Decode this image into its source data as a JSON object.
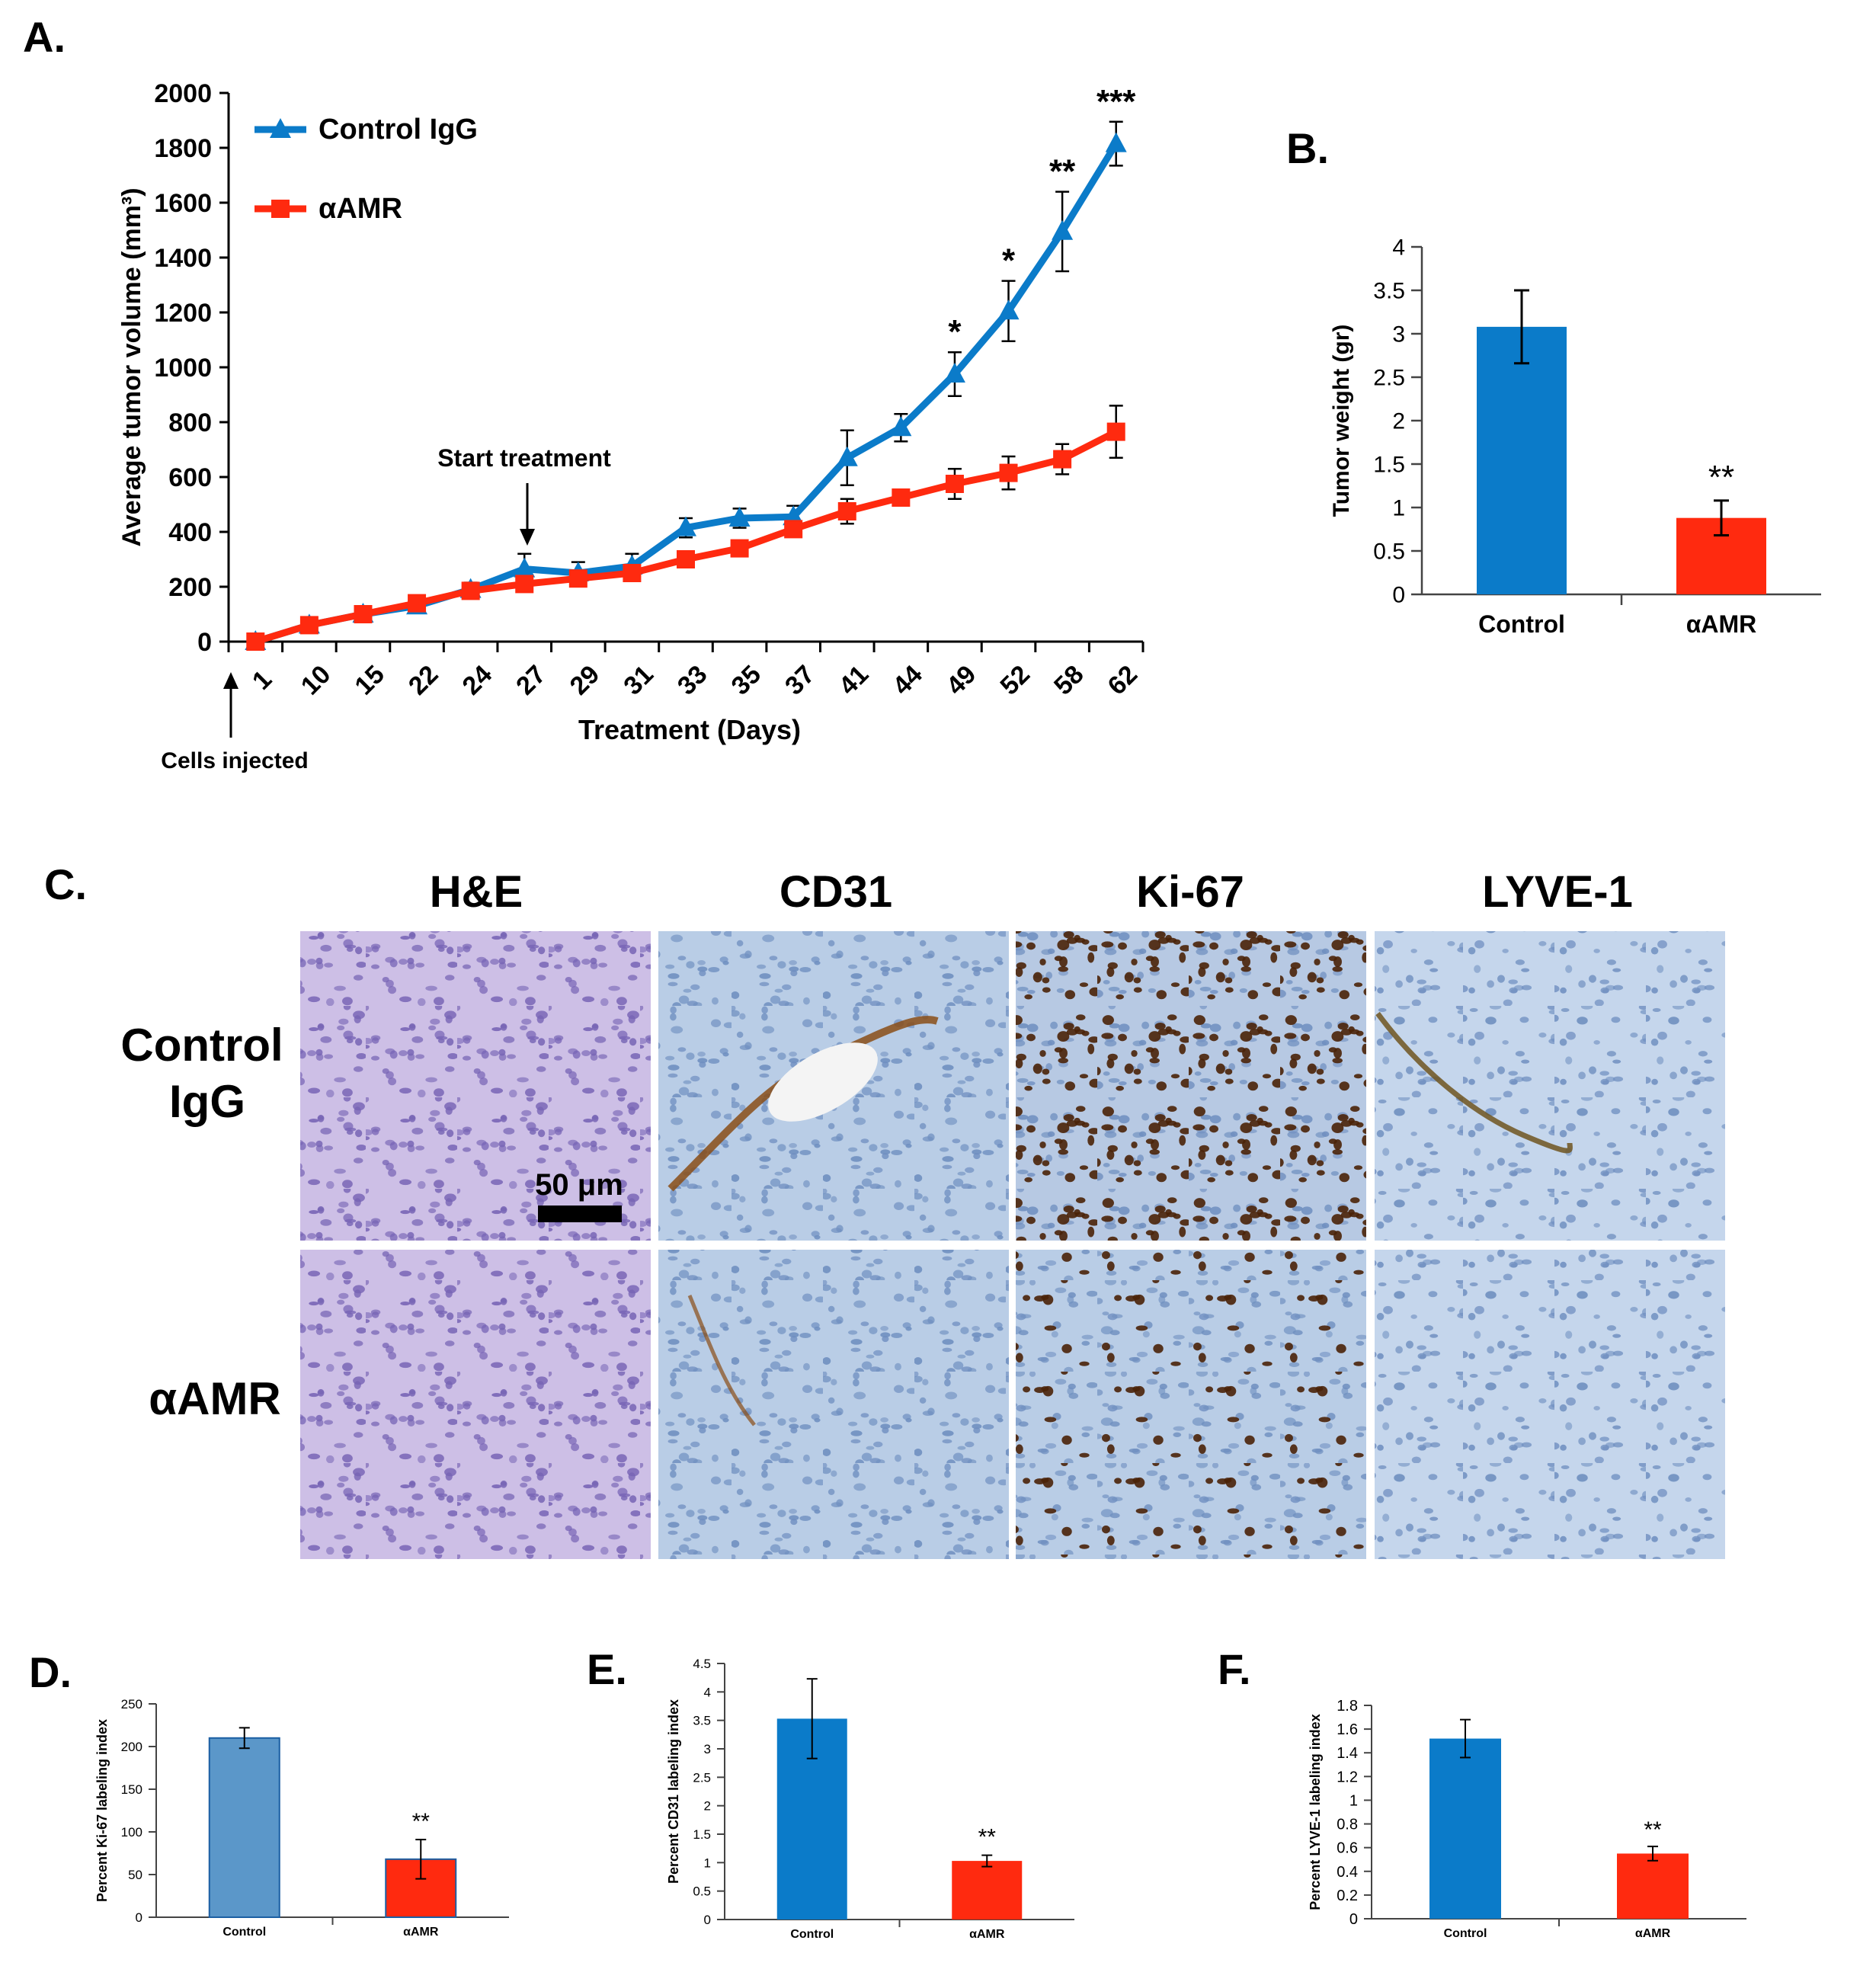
{
  "figure": {
    "colors": {
      "control": "#0b7bc9",
      "amr": "#ff2a0f",
      "control_light": "#5b97c9",
      "axis": "#000000"
    }
  },
  "chart_data": [
    {
      "id": "A",
      "panel_label": "A.",
      "type": "line",
      "categories": [
        "1",
        "10",
        "15",
        "22",
        "24",
        "27",
        "29",
        "31",
        "33",
        "35",
        "37",
        "41",
        "44",
        "49",
        "52",
        "58",
        "62"
      ],
      "series": [
        {
          "name": "Control IgG",
          "values": [
            0,
            60,
            100,
            130,
            190,
            265,
            250,
            275,
            415,
            450,
            455,
            670,
            780,
            975,
            1205,
            1495,
            1815
          ],
          "errors": [
            0,
            20,
            25,
            25,
            25,
            55,
            40,
            45,
            35,
            35,
            40,
            100,
            50,
            80,
            110,
            145,
            80
          ]
        },
        {
          "name": "αAMR",
          "values": [
            0,
            60,
            100,
            140,
            185,
            210,
            230,
            250,
            300,
            340,
            410,
            475,
            525,
            575,
            615,
            665,
            765
          ],
          "errors": [
            0,
            15,
            20,
            20,
            20,
            20,
            25,
            25,
            25,
            25,
            25,
            45,
            30,
            55,
            60,
            55,
            95
          ]
        }
      ],
      "significance": [
        {
          "x": "49",
          "label": "*"
        },
        {
          "x": "52",
          "label": "*"
        },
        {
          "x": "58",
          "label": "**"
        },
        {
          "x": "62",
          "label": "***"
        }
      ],
      "ylabel": "Average tumor volume (mm³)",
      "xlabel": "Treatment (Days)",
      "ylim": [
        0,
        2000
      ],
      "yticks": [
        "0",
        "200",
        "400",
        "600",
        "800",
        "1000",
        "1200",
        "1400",
        "1600",
        "1800",
        "2000"
      ],
      "annotations": {
        "start": "Start treatment",
        "cells": "Cells injected"
      },
      "legend": "top-left"
    },
    {
      "id": "B",
      "panel_label": "B.",
      "type": "bar",
      "categories": [
        "Control",
        "αAMR"
      ],
      "values": [
        3.08,
        0.88
      ],
      "errors": [
        0.42,
        0.2
      ],
      "significance": [
        "",
        "**"
      ],
      "ylabel": "Tumor weight (gr)",
      "ylim": [
        0,
        4
      ],
      "yticks": [
        "0",
        "0.5",
        "1",
        "1.5",
        "2",
        "2.5",
        "3",
        "3.5",
        "4"
      ]
    },
    {
      "id": "D",
      "panel_label": "D.",
      "type": "bar",
      "categories": [
        "Control",
        "αAMR"
      ],
      "values": [
        210,
        68
      ],
      "errors": [
        12,
        23
      ],
      "significance": [
        "",
        "**"
      ],
      "ylabel": "Percent Ki-67 labeling index",
      "ylim": [
        0,
        250
      ],
      "yticks": [
        "0",
        "50",
        "100",
        "150",
        "200",
        "250"
      ]
    },
    {
      "id": "E",
      "panel_label": "E.",
      "type": "bar",
      "categories": [
        "Control",
        "αAMR"
      ],
      "values": [
        3.53,
        1.03
      ],
      "errors": [
        0.7,
        0.1
      ],
      "significance": [
        "",
        "**"
      ],
      "ylabel": "Percent CD31 labeling index",
      "ylim": [
        0,
        4.5
      ],
      "yticks": [
        "0",
        "0.5",
        "1",
        "1.5",
        "2",
        "2.5",
        "3",
        "3.5",
        "4",
        "4.5"
      ]
    },
    {
      "id": "F",
      "panel_label": "F.",
      "type": "bar",
      "categories": [
        "Control",
        "αAMR"
      ],
      "values": [
        1.52,
        0.55
      ],
      "errors": [
        0.16,
        0.06
      ],
      "significance": [
        "",
        "**"
      ],
      "ylabel": "Percent LYVE-1 labeling index",
      "ylim": [
        0,
        1.8
      ],
      "yticks": [
        "0",
        "0.2",
        "0.4",
        "0.6",
        "0.8",
        "1",
        "1.2",
        "1.4",
        "1.6",
        "1.8"
      ]
    }
  ],
  "histology": {
    "panel_label": "C.",
    "stains": [
      "H&E",
      "CD31",
      "Ki-67",
      "LYVE-1"
    ],
    "rows": [
      "Control IgG",
      "αAMR"
    ],
    "row_labels": [
      [
        "Control",
        "IgG"
      ],
      [
        "αAMR"
      ]
    ],
    "scale_bar": "50 μm"
  }
}
